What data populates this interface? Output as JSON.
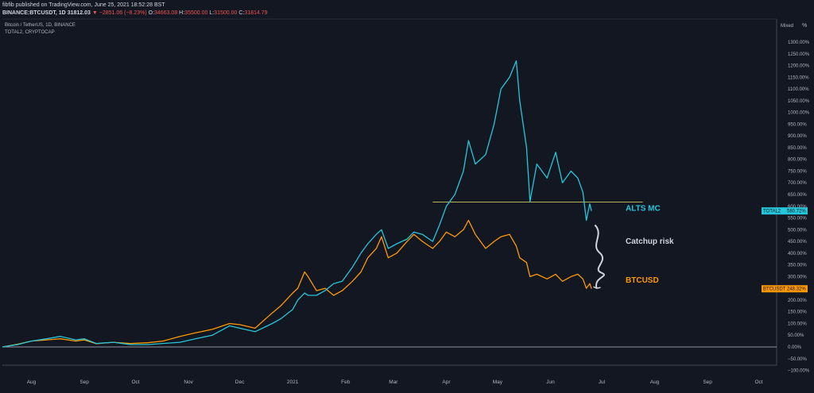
{
  "header": {
    "author_line": "fibfib published on TradingView.com, June 25, 2021 18:52:28 BST",
    "symbol": "BINANCE:BTCUSDT, 1D",
    "price": "31812.03",
    "change": "−2851.06 (−8.23%)",
    "open_label": "O:",
    "open": "34663.08",
    "high_label": "H:",
    "high": "35500.00",
    "low_label": "L:",
    "low": "31500.00",
    "close_label": "C:",
    "close": "31814.79"
  },
  "legend": {
    "main": "Bitcoin / TetherUS, 1D, BINANCE",
    "compare": "TOTAL2, CRYPTOCAP"
  },
  "scale": {
    "mode_label": "Mixed",
    "percent_icon": "%"
  },
  "colors": {
    "background": "#131722",
    "btc": "#ff9800",
    "alts": "#26c6da",
    "annot_white": "#d1d4dc",
    "hline": "#b5b557",
    "zero_line": "#d1d4dc"
  },
  "chart_data": {
    "type": "line",
    "title": "",
    "ylabel": "",
    "xlabel": "",
    "y_unit": "%",
    "ylim": [
      -100,
      1350
    ],
    "y_ticks": [
      -100,
      -50,
      0,
      50,
      100,
      150,
      200,
      250,
      300,
      350,
      400,
      450,
      500,
      550,
      600,
      650,
      700,
      750,
      800,
      850,
      900,
      950,
      1000,
      1050,
      1100,
      1150,
      1200,
      1250,
      1300
    ],
    "x_ticks": [
      {
        "label": "Aug",
        "x": "2020-08-01"
      },
      {
        "label": "Sep",
        "x": "2020-09-01"
      },
      {
        "label": "Oct",
        "x": "2020-10-01"
      },
      {
        "label": "Nov",
        "x": "2020-11-01"
      },
      {
        "label": "Dec",
        "x": "2020-12-01"
      },
      {
        "label": "2021",
        "x": "2021-01-01"
      },
      {
        "label": "Feb",
        "x": "2021-02-01"
      },
      {
        "label": "Mar",
        "x": "2021-03-01"
      },
      {
        "label": "Apr",
        "x": "2021-04-01"
      },
      {
        "label": "May",
        "x": "2021-05-01"
      },
      {
        "label": "Jun",
        "x": "2021-06-01"
      },
      {
        "label": "Jul",
        "x": "2021-07-01"
      },
      {
        "label": "Aug",
        "x": "2021-08-01"
      },
      {
        "label": "Sep",
        "x": "2021-09-01"
      },
      {
        "label": "Oct",
        "x": "2021-10-01"
      }
    ],
    "grid": false,
    "series": [
      {
        "name": "BTCUSDT",
        "color": "#ff9800",
        "last_value_label": "248.32%",
        "points": [
          [
            "2020-07-15",
            0
          ],
          [
            "2020-07-24",
            12
          ],
          [
            "2020-08-01",
            25
          ],
          [
            "2020-08-10",
            30
          ],
          [
            "2020-08-18",
            35
          ],
          [
            "2020-08-27",
            25
          ],
          [
            "2020-09-01",
            30
          ],
          [
            "2020-09-08",
            14
          ],
          [
            "2020-09-18",
            20
          ],
          [
            "2020-09-28",
            15
          ],
          [
            "2020-10-08",
            18
          ],
          [
            "2020-10-17",
            25
          ],
          [
            "2020-10-27",
            45
          ],
          [
            "2020-11-05",
            60
          ],
          [
            "2020-11-15",
            75
          ],
          [
            "2020-11-25",
            100
          ],
          [
            "2020-12-01",
            95
          ],
          [
            "2020-12-10",
            80
          ],
          [
            "2020-12-20",
            145
          ],
          [
            "2020-12-25",
            175
          ],
          [
            "2021-01-01",
            230
          ],
          [
            "2021-01-04",
            250
          ],
          [
            "2021-01-08",
            320
          ],
          [
            "2021-01-10",
            300
          ],
          [
            "2021-01-15",
            240
          ],
          [
            "2021-01-20",
            250
          ],
          [
            "2021-01-25",
            220
          ],
          [
            "2021-01-30",
            240
          ],
          [
            "2021-02-05",
            280
          ],
          [
            "2021-02-10",
            320
          ],
          [
            "2021-02-14",
            380
          ],
          [
            "2021-02-19",
            420
          ],
          [
            "2021-02-22",
            470
          ],
          [
            "2021-02-26",
            380
          ],
          [
            "2021-03-03",
            400
          ],
          [
            "2021-03-09",
            450
          ],
          [
            "2021-03-13",
            480
          ],
          [
            "2021-03-18",
            450
          ],
          [
            "2021-03-24",
            420
          ],
          [
            "2021-03-28",
            450
          ],
          [
            "2021-04-01",
            490
          ],
          [
            "2021-04-06",
            470
          ],
          [
            "2021-04-11",
            500
          ],
          [
            "2021-04-14",
            540
          ],
          [
            "2021-04-18",
            480
          ],
          [
            "2021-04-24",
            420
          ],
          [
            "2021-04-29",
            450
          ],
          [
            "2021-05-03",
            470
          ],
          [
            "2021-05-08",
            480
          ],
          [
            "2021-05-12",
            430
          ],
          [
            "2021-05-14",
            380
          ],
          [
            "2021-05-18",
            360
          ],
          [
            "2021-05-20",
            300
          ],
          [
            "2021-05-24",
            310
          ],
          [
            "2021-05-30",
            290
          ],
          [
            "2021-06-04",
            310
          ],
          [
            "2021-06-08",
            280
          ],
          [
            "2021-06-13",
            300
          ],
          [
            "2021-06-17",
            310
          ],
          [
            "2021-06-20",
            290
          ],
          [
            "2021-06-22",
            250
          ],
          [
            "2021-06-24",
            270
          ],
          [
            "2021-06-25",
            248
          ]
        ]
      },
      {
        "name": "TOTAL2",
        "color": "#26c6da",
        "last_value_label": "580.72%",
        "points": [
          [
            "2020-07-15",
            0
          ],
          [
            "2020-07-24",
            10
          ],
          [
            "2020-08-01",
            25
          ],
          [
            "2020-08-10",
            35
          ],
          [
            "2020-08-18",
            45
          ],
          [
            "2020-08-27",
            30
          ],
          [
            "2020-09-01",
            35
          ],
          [
            "2020-09-08",
            15
          ],
          [
            "2020-09-18",
            20
          ],
          [
            "2020-09-28",
            10
          ],
          [
            "2020-10-08",
            10
          ],
          [
            "2020-10-17",
            15
          ],
          [
            "2020-10-27",
            20
          ],
          [
            "2020-11-05",
            35
          ],
          [
            "2020-11-15",
            50
          ],
          [
            "2020-11-25",
            90
          ],
          [
            "2020-12-01",
            80
          ],
          [
            "2020-12-10",
            65
          ],
          [
            "2020-12-20",
            100
          ],
          [
            "2020-12-25",
            120
          ],
          [
            "2021-01-01",
            160
          ],
          [
            "2021-01-04",
            200
          ],
          [
            "2021-01-08",
            230
          ],
          [
            "2021-01-10",
            220
          ],
          [
            "2021-01-15",
            220
          ],
          [
            "2021-01-20",
            240
          ],
          [
            "2021-01-25",
            270
          ],
          [
            "2021-01-30",
            280
          ],
          [
            "2021-02-05",
            340
          ],
          [
            "2021-02-10",
            400
          ],
          [
            "2021-02-14",
            440
          ],
          [
            "2021-02-19",
            480
          ],
          [
            "2021-02-22",
            500
          ],
          [
            "2021-02-26",
            420
          ],
          [
            "2021-03-03",
            440
          ],
          [
            "2021-03-09",
            460
          ],
          [
            "2021-03-13",
            490
          ],
          [
            "2021-03-18",
            480
          ],
          [
            "2021-03-24",
            450
          ],
          [
            "2021-03-28",
            520
          ],
          [
            "2021-04-01",
            600
          ],
          [
            "2021-04-06",
            650
          ],
          [
            "2021-04-11",
            750
          ],
          [
            "2021-04-14",
            880
          ],
          [
            "2021-04-18",
            780
          ],
          [
            "2021-04-24",
            820
          ],
          [
            "2021-04-29",
            950
          ],
          [
            "2021-05-03",
            1100
          ],
          [
            "2021-05-08",
            1150
          ],
          [
            "2021-05-12",
            1220
          ],
          [
            "2021-05-14",
            1050
          ],
          [
            "2021-05-18",
            850
          ],
          [
            "2021-05-20",
            620
          ],
          [
            "2021-05-24",
            780
          ],
          [
            "2021-05-30",
            720
          ],
          [
            "2021-06-04",
            830
          ],
          [
            "2021-06-08",
            700
          ],
          [
            "2021-06-13",
            750
          ],
          [
            "2021-06-17",
            720
          ],
          [
            "2021-06-20",
            660
          ],
          [
            "2021-06-22",
            540
          ],
          [
            "2021-06-24",
            610
          ],
          [
            "2021-06-25",
            580
          ]
        ]
      }
    ],
    "horizontal_line": {
      "value": 618,
      "from": "2021-03-24",
      "to": "2021-07-25"
    },
    "annotations": [
      {
        "text": "ALTS MC",
        "color": "#26c6da",
        "x": "2021-07-15",
        "y": 580
      },
      {
        "text": "Catchup risk",
        "color": "#d1d4dc",
        "x": "2021-07-15",
        "y": 440
      },
      {
        "text": "BTCUSD",
        "color": "#ff9800",
        "x": "2021-07-15",
        "y": 275
      }
    ],
    "arrow": {
      "from": [
        "2021-06-27",
        520
      ],
      "to": [
        "2021-06-28",
        250
      ]
    }
  }
}
